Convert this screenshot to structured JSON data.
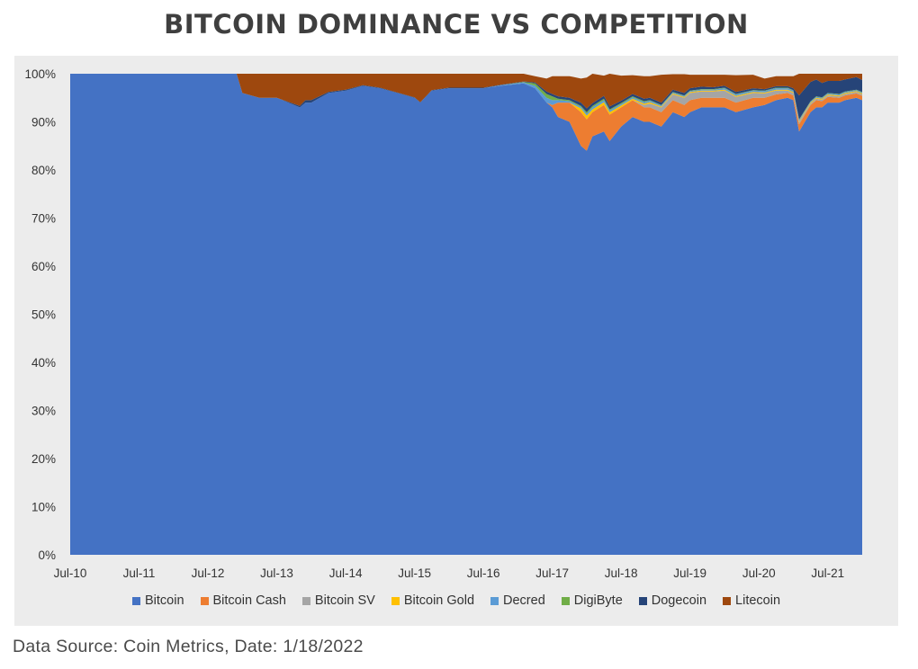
{
  "title": "BITCOIN DOMINANCE VS COMPETITION",
  "source_note": "Data Source: Coin Metrics, Date: 1/18/2022",
  "colors": {
    "Bitcoin": "#4472c4",
    "Bitcoin Cash": "#ed7d31",
    "Bitcoin SV": "#a5a5a5",
    "Bitcoin Gold": "#ffc000",
    "Decred": "#5b9bd5",
    "DigiByte": "#70ad47",
    "Dogecoin": "#264478",
    "Litecoin": "#9e480e"
  },
  "chart_data": {
    "type": "area",
    "stacked": true,
    "percent_axis": true,
    "title": "BITCOIN DOMINANCE VS COMPETITION",
    "xlabel": "",
    "ylabel": "",
    "ylim": [
      0,
      100
    ],
    "y_ticks": [
      "0%",
      "10%",
      "20%",
      "30%",
      "40%",
      "50%",
      "60%",
      "70%",
      "80%",
      "90%",
      "100%"
    ],
    "x_ticks": [
      "Jul-10",
      "Jul-11",
      "Jul-12",
      "Jul-13",
      "Jul-14",
      "Jul-15",
      "Jul-16",
      "Jul-17",
      "Jul-18",
      "Jul-19",
      "Jul-20",
      "Jul-21"
    ],
    "legend_position": "bottom",
    "grid": false,
    "x": [
      "Jul-10",
      "Jan-11",
      "Jul-11",
      "Jan-12",
      "Jul-12",
      "Dec-12",
      "Jan-13",
      "Apr-13",
      "Jul-13",
      "Nov-13",
      "Dec-13",
      "Jan-14",
      "Apr-14",
      "Jul-14",
      "Oct-14",
      "Jan-15",
      "Apr-15",
      "Jul-15",
      "Aug-15",
      "Oct-15",
      "Jan-16",
      "Apr-16",
      "Jul-16",
      "Oct-16",
      "Feb-17",
      "Apr-17",
      "Jun-17",
      "Jul-17",
      "Aug-17",
      "Oct-17",
      "Dec-17",
      "Jan-18",
      "Feb-18",
      "Apr-18",
      "May-18",
      "Jul-18",
      "Sep-18",
      "Nov-18",
      "Dec-18",
      "Feb-19",
      "Apr-19",
      "Jun-19",
      "Jul-19",
      "Sep-19",
      "Nov-19",
      "Jan-20",
      "Mar-20",
      "Jun-20",
      "Aug-20",
      "Oct-20",
      "Dec-20",
      "Jan-21",
      "Feb-21",
      "Mar-21",
      "Apr-21",
      "May-21",
      "Jun-21",
      "Jul-21",
      "Sep-21",
      "Oct-21",
      "Dec-21",
      "Jan-22"
    ],
    "series": [
      {
        "name": "Bitcoin",
        "values": [
          100,
          100,
          100,
          100,
          100,
          100,
          96,
          95,
          95,
          93,
          94,
          94,
          96,
          96.5,
          97.5,
          97,
          96,
          95,
          94,
          96.5,
          97,
          97,
          97,
          97.5,
          98,
          97,
          94,
          93,
          91,
          90,
          85,
          84,
          87,
          88,
          86,
          89,
          91,
          90,
          90,
          89,
          92,
          91,
          92,
          93,
          93,
          93,
          92,
          93,
          93.5,
          94.5,
          95,
          94.5,
          88,
          90,
          92,
          93,
          93,
          94,
          94,
          94.5,
          95,
          94.5
        ]
      },
      {
        "name": "Bitcoin Cash",
        "values": [
          0,
          0,
          0,
          0,
          0,
          0,
          0,
          0,
          0,
          0,
          0,
          0,
          0,
          0,
          0,
          0,
          0,
          0,
          0,
          0,
          0,
          0,
          0,
          0,
          0,
          0,
          0,
          0.5,
          3,
          4,
          7,
          6.5,
          5,
          5.5,
          5.5,
          4,
          3.5,
          3,
          3,
          3,
          2.5,
          2.5,
          2.5,
          2,
          2,
          2,
          2,
          2,
          1.5,
          1.2,
          1,
          1,
          1.5,
          1.5,
          1.5,
          1.5,
          1.3,
          1.2,
          1,
          1,
          0.9,
          0.9
        ]
      },
      {
        "name": "Bitcoin SV",
        "values": [
          0,
          0,
          0,
          0,
          0,
          0,
          0,
          0,
          0,
          0,
          0,
          0,
          0,
          0,
          0,
          0,
          0,
          0,
          0,
          0,
          0,
          0,
          0,
          0,
          0,
          0,
          0,
          0,
          0,
          0,
          0,
          0,
          0,
          0,
          0,
          0,
          0,
          0.5,
          0.8,
          1,
          1.2,
          1.5,
          1.5,
          1.3,
          1.3,
          1.5,
          1.2,
          1,
          0.9,
          0.8,
          0.5,
          0.5,
          0.4,
          0.4,
          0.3,
          0.3,
          0.3,
          0.3,
          0.3,
          0.3,
          0.3,
          0.3
        ]
      },
      {
        "name": "Bitcoin Gold",
        "values": [
          0,
          0,
          0,
          0,
          0,
          0,
          0,
          0,
          0,
          0,
          0,
          0,
          0,
          0,
          0,
          0,
          0,
          0,
          0,
          0,
          0,
          0,
          0,
          0,
          0,
          0,
          0,
          0,
          0,
          0,
          0.8,
          0.8,
          0.6,
          0.6,
          0.5,
          0.4,
          0.3,
          0.3,
          0.3,
          0.2,
          0.2,
          0.2,
          0.2,
          0.2,
          0.2,
          0.2,
          0.2,
          0.2,
          0.2,
          0.2,
          0.2,
          0.2,
          0.2,
          0.2,
          0.2,
          0.2,
          0.2,
          0.2,
          0.2,
          0.2,
          0.2,
          0.2
        ]
      },
      {
        "name": "Decred",
        "values": [
          0,
          0,
          0,
          0,
          0,
          0,
          0,
          0,
          0,
          0,
          0,
          0,
          0,
          0,
          0,
          0,
          0,
          0,
          0,
          0,
          0,
          0,
          0,
          0.1,
          0.2,
          0.5,
          1,
          1,
          0.5,
          0.3,
          0.3,
          0.4,
          0.4,
          0.4,
          0.4,
          0.3,
          0.3,
          0.3,
          0.3,
          0.2,
          0.2,
          0.2,
          0.2,
          0.2,
          0.2,
          0.3,
          0.3,
          0.3,
          0.3,
          0.3,
          0.3,
          0.3,
          0.3,
          0.2,
          0.2,
          0.2,
          0.2,
          0.2,
          0.2,
          0.2,
          0.2,
          0.2
        ]
      },
      {
        "name": "DigiByte",
        "values": [
          0,
          0,
          0,
          0,
          0,
          0,
          0,
          0,
          0,
          0,
          0,
          0,
          0,
          0,
          0,
          0,
          0,
          0,
          0,
          0,
          0,
          0,
          0,
          0,
          0.1,
          0.5,
          0.8,
          0.8,
          0.3,
          0.2,
          0.2,
          0.3,
          0.3,
          0.3,
          0.2,
          0.2,
          0.2,
          0.2,
          0.1,
          0.1,
          0.1,
          0.1,
          0.1,
          0.1,
          0.1,
          0.1,
          0.1,
          0.1,
          0.1,
          0.1,
          0.1,
          0.1,
          0.1,
          0.1,
          0.1,
          0.1,
          0.1,
          0.1,
          0.1,
          0.1,
          0.1,
          0.1
        ]
      },
      {
        "name": "Dogecoin",
        "values": [
          0,
          0,
          0,
          0,
          0,
          0,
          0,
          0,
          0,
          0.3,
          0.5,
          0.5,
          0.2,
          0.2,
          0.1,
          0.1,
          0.1,
          0.1,
          0.1,
          0.1,
          0.1,
          0.1,
          0.1,
          0.1,
          0.1,
          0.2,
          0.5,
          0.5,
          0.5,
          0.5,
          0.7,
          0.8,
          0.6,
          0.6,
          0.6,
          0.5,
          0.5,
          0.5,
          0.5,
          0.5,
          0.5,
          0.5,
          0.5,
          0.5,
          0.4,
          0.4,
          0.4,
          0.4,
          0.3,
          0.3,
          0.3,
          0.4,
          5,
          4.5,
          4,
          3.5,
          3,
          2.5,
          2.7,
          2.5,
          2.6,
          2.5
        ]
      },
      {
        "name": "Litecoin",
        "values": [
          0,
          0,
          0,
          0,
          0,
          0,
          4,
          5,
          5,
          6.7,
          5.5,
          5.5,
          3.8,
          3.3,
          2.4,
          2.9,
          3.9,
          4.9,
          5.9,
          3.4,
          2.9,
          2.9,
          2.9,
          2.3,
          1.6,
          1.3,
          2.7,
          3.7,
          4.2,
          4.5,
          5,
          6.4,
          6.1,
          4.2,
          6.8,
          5.2,
          3.9,
          4.7,
          4.5,
          5.8,
          3.2,
          3.9,
          2.8,
          2.5,
          2.6,
          2.3,
          3.5,
          2.8,
          2.2,
          2.1,
          2.1,
          2.5,
          4.5,
          3.1,
          1.7,
          1.2,
          1.9,
          1.5,
          1.5,
          1.2,
          0.7,
          1.3
        ]
      }
    ]
  }
}
